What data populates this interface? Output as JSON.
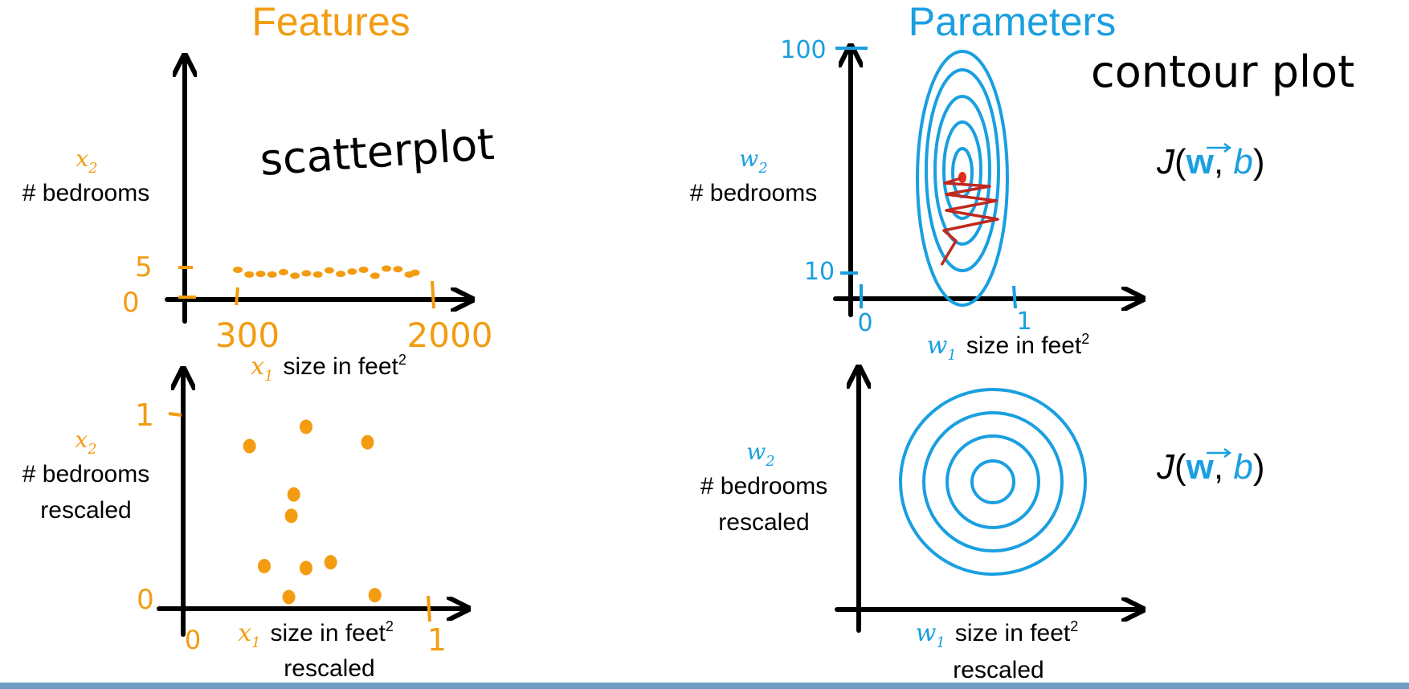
{
  "colors": {
    "features": "#f39c12",
    "parameters": "#1a9fe0",
    "axis": "#000000",
    "path": "#c0281e",
    "footer": "#6f9bc4"
  },
  "headers": {
    "features": "Features",
    "parameters": "Parameters"
  },
  "notes": {
    "scatterplot": "scatterplot",
    "contour_plot": "contour plot"
  },
  "panels": {
    "top_left": {
      "y_var": "x",
      "y_sub": "2",
      "y_label": "# bedrooms",
      "x_var": "x",
      "x_sub": "1",
      "x_label": "size in feet",
      "x_sup": "2",
      "y_ticks": [
        "5",
        "0"
      ],
      "x_ticks": [
        "300",
        "2000"
      ]
    },
    "bottom_left": {
      "y_var": "x",
      "y_sub": "2",
      "y_label": "# bedrooms",
      "y_label2": "rescaled",
      "x_var": "x",
      "x_sub": "1",
      "x_label": "size in feet",
      "x_sup": "2",
      "x_label2": "rescaled",
      "y_ticks": [
        "1",
        "0"
      ],
      "x_ticks": [
        "0",
        "1"
      ]
    },
    "top_right": {
      "y_var": "w",
      "y_sub": "2",
      "y_label": "# bedrooms",
      "x_var": "w",
      "x_sub": "1",
      "x_label": "size in feet",
      "x_sup": "2",
      "y_ticks": [
        "100",
        "10"
      ],
      "x_ticks": [
        "0",
        "1"
      ],
      "cost": {
        "J": "J",
        "w": "w",
        "b": "b"
      }
    },
    "bottom_right": {
      "y_var": "w",
      "y_sub": "2",
      "y_label": "# bedrooms",
      "y_label2": "rescaled",
      "x_var": "w",
      "x_sub": "1",
      "x_label": "size in feet",
      "x_sup": "2",
      "x_label2": "rescaled",
      "cost": {
        "J": "J",
        "w": "w",
        "b": "b"
      }
    }
  },
  "scatter_top": [
    [
      300,
      4.6
    ],
    [
      400,
      3.8
    ],
    [
      500,
      3.9
    ],
    [
      600,
      3.8
    ],
    [
      700,
      4.2
    ],
    [
      800,
      3.6
    ],
    [
      900,
      4.0
    ],
    [
      1000,
      3.8
    ],
    [
      1100,
      4.5
    ],
    [
      1200,
      3.9
    ],
    [
      1300,
      4.3
    ],
    [
      1400,
      4.6
    ],
    [
      1500,
      3.6
    ],
    [
      1600,
      4.8
    ],
    [
      1700,
      4.7
    ],
    [
      1800,
      3.8
    ],
    [
      1850,
      4.1
    ]
  ],
  "scatter_bottom": [
    [
      0.27,
      0.84
    ],
    [
      0.5,
      0.94
    ],
    [
      0.75,
      0.86
    ],
    [
      0.45,
      0.59
    ],
    [
      0.44,
      0.48
    ],
    [
      0.33,
      0.22
    ],
    [
      0.6,
      0.24
    ],
    [
      0.5,
      0.21
    ],
    [
      0.43,
      0.06
    ],
    [
      0.78,
      0.07
    ]
  ]
}
